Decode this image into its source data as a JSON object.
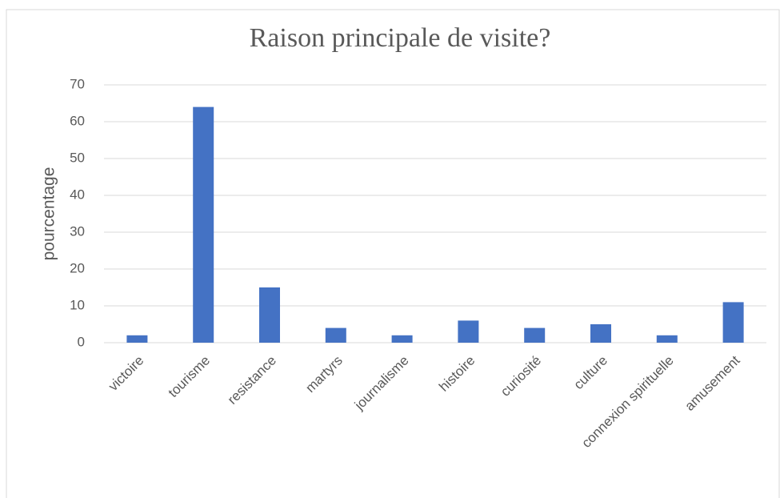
{
  "chart_data": {
    "type": "bar",
    "title": "Raison principale de visite?",
    "y_label": "pourcentage",
    "categories": [
      "victoire",
      "tourisme",
      "resistance",
      "martyrs",
      "journalisme",
      "histoire",
      "curiosité",
      "culture",
      "connexion spirituelle",
      "amusement"
    ],
    "values": [
      2,
      64,
      15,
      4,
      2,
      6,
      4,
      5,
      2,
      11
    ],
    "color": "#4472c4",
    "ylim": [
      0,
      70
    ],
    "yticks": [
      0,
      10,
      20,
      30,
      40,
      50,
      60,
      70
    ],
    "grid": true
  }
}
